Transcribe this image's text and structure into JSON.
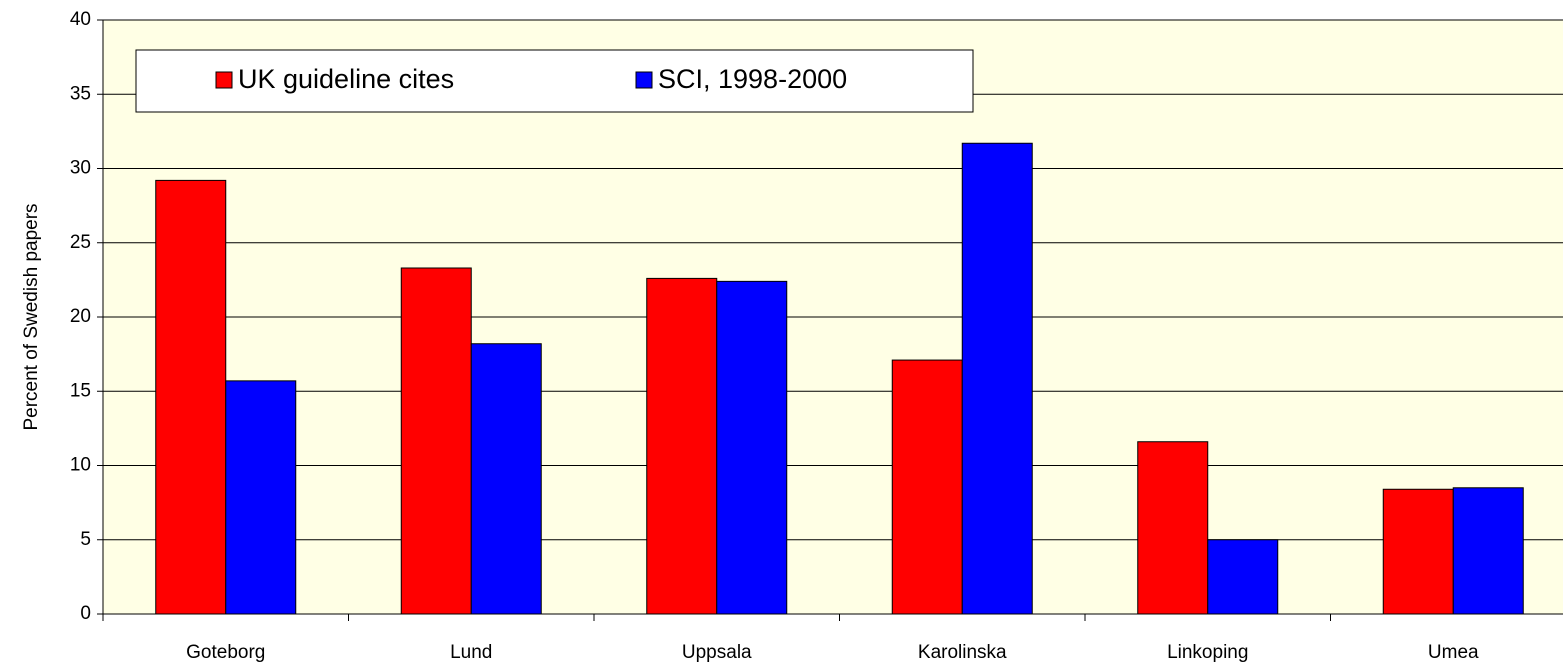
{
  "chart_data": {
    "type": "bar",
    "y_label": "Percent of Swedish papers",
    "categories": [
      "Goteborg",
      "Lund",
      "Uppsala",
      "Karolinska",
      "Linkoping",
      "Umea"
    ],
    "series": [
      {
        "name": "UK guideline cites",
        "color": "#ff0000",
        "values": [
          29.2,
          23.3,
          22.6,
          17.1,
          11.6,
          8.4
        ]
      },
      {
        "name": "SCI, 1998-2000",
        "color": "#0000ff",
        "values": [
          15.7,
          18.2,
          22.4,
          31.7,
          5.0,
          8.5
        ]
      }
    ],
    "ylim": [
      0,
      40
    ],
    "yticks": [
      0,
      5,
      10,
      15,
      20,
      25,
      30,
      35,
      40
    ],
    "grid": true,
    "legend": "top-left"
  }
}
